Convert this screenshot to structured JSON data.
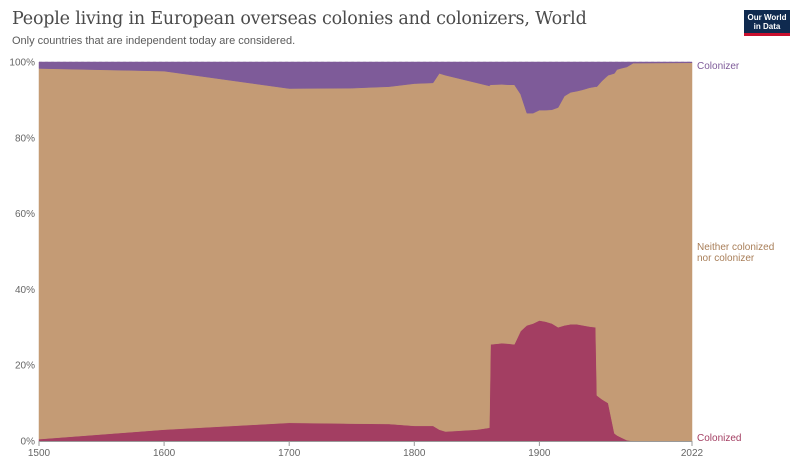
{
  "header": {
    "title": "People living in European overseas colonies and colonizers, World",
    "subtitle": "Only countries that are independent today are considered.",
    "logo_line1": "Our World",
    "logo_line2": "in Data"
  },
  "chart_data": {
    "type": "area",
    "stacked": true,
    "percent": true,
    "x": [
      1500,
      1600,
      1700,
      1750,
      1780,
      1800,
      1815,
      1820,
      1825,
      1850,
      1860,
      1861,
      1870,
      1875,
      1880,
      1885,
      1890,
      1895,
      1900,
      1905,
      1910,
      1915,
      1920,
      1925,
      1930,
      1935,
      1940,
      1945,
      1946,
      1950,
      1955,
      1960,
      1962,
      1965,
      1970,
      1975,
      2022
    ],
    "series": [
      {
        "name": "Colonized",
        "color": "#a33e62",
        "values": [
          0.5,
          3.0,
          4.8,
          4.6,
          4.5,
          4.0,
          4.0,
          3.0,
          2.5,
          3.0,
          3.5,
          25.5,
          25.8,
          25.7,
          25.5,
          29.0,
          30.5,
          31.0,
          31.8,
          31.5,
          31.0,
          30.0,
          30.5,
          30.8,
          30.8,
          30.5,
          30.2,
          30.0,
          12.0,
          11.0,
          10.0,
          2.0,
          1.5,
          1.0,
          0.2,
          0.0,
          0.0
        ]
      },
      {
        "name": "Neither colonized nor colonizer",
        "color": "#c49b75",
        "values": [
          97.8,
          94.6,
          88.2,
          88.5,
          89.0,
          90.3,
          90.5,
          94.0,
          94.0,
          91.5,
          90.2,
          68.5,
          68.3,
          68.3,
          68.5,
          62.5,
          56.0,
          55.5,
          55.5,
          55.8,
          56.4,
          58.0,
          60.5,
          61.2,
          61.5,
          62.2,
          63.0,
          63.5,
          81.5,
          84.0,
          86.5,
          95.0,
          96.5,
          97.3,
          98.5,
          99.7,
          99.8
        ]
      },
      {
        "name": "Colonizer",
        "color": "#7e5b99",
        "values": [
          1.7,
          2.4,
          7.0,
          6.9,
          6.5,
          5.7,
          5.5,
          3.0,
          3.5,
          5.5,
          6.3,
          6.0,
          5.9,
          6.0,
          6.0,
          8.5,
          13.5,
          13.5,
          12.7,
          12.7,
          12.6,
          12.0,
          9.0,
          8.0,
          7.7,
          7.3,
          6.8,
          6.5,
          6.5,
          5.0,
          3.5,
          3.0,
          2.0,
          1.7,
          1.3,
          0.3,
          0.2
        ]
      }
    ],
    "x_ticks": [
      "1500",
      "1600",
      "1700",
      "1800",
      "1900",
      "2022"
    ],
    "y_ticks": [
      "0%",
      "20%",
      "40%",
      "60%",
      "80%",
      "100%"
    ],
    "series_labels": {
      "colonizer": "Colonizer",
      "neither_line1": "Neither colonized",
      "neither_line2": "nor colonizer",
      "colonized": "Colonized"
    },
    "xlim": [
      1500,
      2022
    ],
    "ylim": [
      0,
      100
    ],
    "grid": "horizontal dashed",
    "legend": "right, inline labels"
  }
}
